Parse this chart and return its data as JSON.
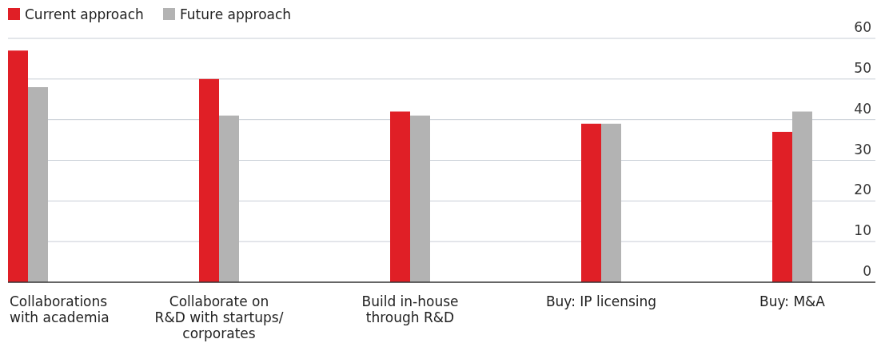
{
  "chart_data": {
    "type": "bar",
    "categories": [
      "Collaborations\nwith academia",
      "Collaborate on\nR&D with startups/\ncorporates",
      "Build in-house\nthrough R&D",
      "Buy: IP licensing",
      "Buy: M&A"
    ],
    "series": [
      {
        "name": "Current approach",
        "color": "#e01f26",
        "values": [
          57,
          50,
          42,
          39,
          37
        ]
      },
      {
        "name": "Future approach",
        "color": "#b3b3b3",
        "values": [
          48,
          41,
          41,
          39,
          42
        ]
      }
    ],
    "ylim": [
      0,
      60
    ],
    "yticks": [
      0,
      10,
      20,
      30,
      40,
      50,
      60
    ],
    "grid": "y",
    "legend": "top left"
  }
}
